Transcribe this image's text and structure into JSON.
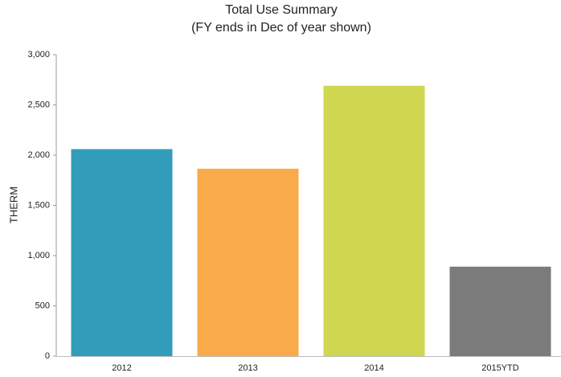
{
  "chart_data": {
    "type": "bar",
    "title": "Total Use Summary",
    "subtitle": "(FY ends in Dec of year shown)",
    "y_label": "THERM",
    "categories": [
      "2012",
      "2013",
      "2014",
      "2015YTD"
    ],
    "values": [
      2060,
      1865,
      2690,
      890
    ],
    "colors": [
      "#329dbb",
      "#f9aa4b",
      "#cfd650",
      "#7b7b7b"
    ],
    "ylim": [
      0,
      3000
    ],
    "yticks": [
      0,
      500,
      {
        "value": 1000,
        "label": "1,000"
      },
      {
        "value": 1500,
        "label": "1,500"
      },
      {
        "value": 2000,
        "label": "2,000"
      },
      {
        "value": 2500,
        "label": "2,500"
      },
      {
        "value": 3000,
        "label": "3,000"
      }
    ],
    "grid": false
  }
}
